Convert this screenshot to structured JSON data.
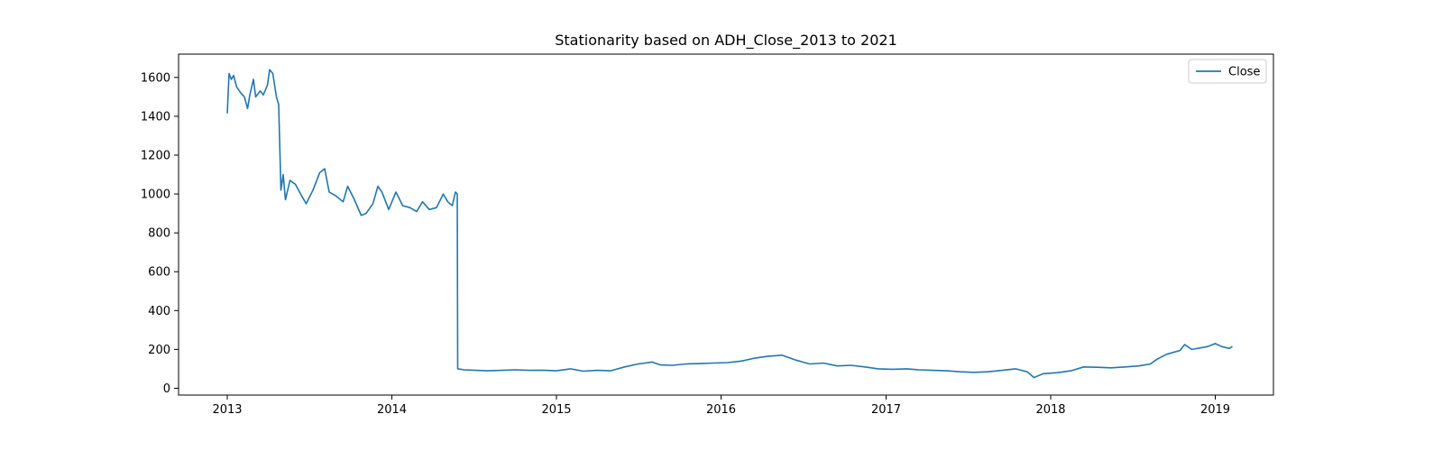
{
  "chart_data": {
    "type": "line",
    "title": "Stationarity based on ADH_Close_2013 to 2021",
    "xlabel": "",
    "ylabel": "",
    "x_ticks": [
      "2013",
      "2014",
      "2015",
      "2016",
      "2017",
      "2018",
      "2019"
    ],
    "y_ticks": [
      0,
      200,
      400,
      600,
      800,
      1000,
      1200,
      1400,
      1600
    ],
    "xlim": [
      "2012-09-15",
      "2019-05-10"
    ],
    "ylim": [
      -35,
      1720
    ],
    "grid": false,
    "legend_position": "top-right",
    "colors": {
      "series": "#1f77b4"
    },
    "series": [
      {
        "name": "Close",
        "points": [
          [
            "2013-01-01",
            1415
          ],
          [
            "2013-01-05",
            1620
          ],
          [
            "2013-01-10",
            1590
          ],
          [
            "2013-01-15",
            1610
          ],
          [
            "2013-01-22",
            1550
          ],
          [
            "2013-01-31",
            1520
          ],
          [
            "2013-02-08",
            1500
          ],
          [
            "2013-02-15",
            1440
          ],
          [
            "2013-02-20",
            1510
          ],
          [
            "2013-02-28",
            1590
          ],
          [
            "2013-03-05",
            1500
          ],
          [
            "2013-03-15",
            1530
          ],
          [
            "2013-03-22",
            1510
          ],
          [
            "2013-03-31",
            1560
          ],
          [
            "2013-04-05",
            1640
          ],
          [
            "2013-04-12",
            1620
          ],
          [
            "2013-04-20",
            1500
          ],
          [
            "2013-04-25",
            1460
          ],
          [
            "2013-04-30",
            1020
          ],
          [
            "2013-05-05",
            1100
          ],
          [
            "2013-05-10",
            970
          ],
          [
            "2013-05-20",
            1070
          ],
          [
            "2013-06-01",
            1050
          ],
          [
            "2013-06-15",
            990
          ],
          [
            "2013-06-25",
            950
          ],
          [
            "2013-07-10",
            1020
          ],
          [
            "2013-07-25",
            1110
          ],
          [
            "2013-08-05",
            1130
          ],
          [
            "2013-08-15",
            1010
          ],
          [
            "2013-08-30",
            990
          ],
          [
            "2013-09-15",
            960
          ],
          [
            "2013-09-25",
            1040
          ],
          [
            "2013-10-10",
            970
          ],
          [
            "2013-10-25",
            890
          ],
          [
            "2013-11-05",
            900
          ],
          [
            "2013-11-20",
            950
          ],
          [
            "2013-12-01",
            1040
          ],
          [
            "2013-12-10",
            1010
          ],
          [
            "2013-12-25",
            920
          ],
          [
            "2014-01-10",
            1010
          ],
          [
            "2014-01-25",
            940
          ],
          [
            "2014-02-10",
            930
          ],
          [
            "2014-02-25",
            910
          ],
          [
            "2014-03-10",
            960
          ],
          [
            "2014-03-25",
            920
          ],
          [
            "2014-04-10",
            930
          ],
          [
            "2014-04-25",
            1000
          ],
          [
            "2014-05-05",
            960
          ],
          [
            "2014-05-15",
            940
          ],
          [
            "2014-05-22",
            1010
          ],
          [
            "2014-05-26",
            1000
          ],
          [
            "2014-05-27",
            100
          ],
          [
            "2014-06-10",
            95
          ],
          [
            "2014-07-01",
            93
          ],
          [
            "2014-08-01",
            90
          ],
          [
            "2014-09-01",
            92
          ],
          [
            "2014-10-01",
            95
          ],
          [
            "2014-11-01",
            92
          ],
          [
            "2014-12-01",
            93
          ],
          [
            "2015-01-01",
            90
          ],
          [
            "2015-02-01",
            100
          ],
          [
            "2015-03-01",
            88
          ],
          [
            "2015-04-01",
            92
          ],
          [
            "2015-05-01",
            90
          ],
          [
            "2015-06-01",
            110
          ],
          [
            "2015-07-01",
            125
          ],
          [
            "2015-08-01",
            135
          ],
          [
            "2015-08-20",
            120
          ],
          [
            "2015-09-15",
            118
          ],
          [
            "2015-10-15",
            125
          ],
          [
            "2015-11-15",
            127
          ],
          [
            "2015-12-15",
            130
          ],
          [
            "2016-01-15",
            132
          ],
          [
            "2016-02-15",
            140
          ],
          [
            "2016-03-15",
            155
          ],
          [
            "2016-04-15",
            165
          ],
          [
            "2016-05-15",
            170
          ],
          [
            "2016-06-15",
            145
          ],
          [
            "2016-07-15",
            125
          ],
          [
            "2016-08-15",
            130
          ],
          [
            "2016-09-15",
            115
          ],
          [
            "2016-10-15",
            118
          ],
          [
            "2016-11-15",
            110
          ],
          [
            "2016-12-15",
            100
          ],
          [
            "2017-01-15",
            98
          ],
          [
            "2017-02-15",
            100
          ],
          [
            "2017-03-15",
            95
          ],
          [
            "2017-04-15",
            92
          ],
          [
            "2017-05-15",
            90
          ],
          [
            "2017-06-15",
            85
          ],
          [
            "2017-07-15",
            82
          ],
          [
            "2017-08-15",
            85
          ],
          [
            "2017-09-15",
            92
          ],
          [
            "2017-10-15",
            100
          ],
          [
            "2017-11-10",
            85
          ],
          [
            "2017-11-25",
            55
          ],
          [
            "2017-12-15",
            75
          ],
          [
            "2018-01-15",
            80
          ],
          [
            "2018-02-15",
            90
          ],
          [
            "2018-03-15",
            110
          ],
          [
            "2018-04-15",
            108
          ],
          [
            "2018-05-15",
            105
          ],
          [
            "2018-06-15",
            110
          ],
          [
            "2018-07-15",
            115
          ],
          [
            "2018-08-10",
            125
          ],
          [
            "2018-08-25",
            150
          ],
          [
            "2018-09-15",
            175
          ],
          [
            "2018-10-15",
            195
          ],
          [
            "2018-10-25",
            225
          ],
          [
            "2018-11-10",
            200
          ],
          [
            "2018-12-15",
            215
          ],
          [
            "2019-01-01",
            230
          ],
          [
            "2019-01-15",
            215
          ],
          [
            "2019-02-01",
            205
          ],
          [
            "2019-02-08",
            215
          ]
        ]
      }
    ]
  }
}
